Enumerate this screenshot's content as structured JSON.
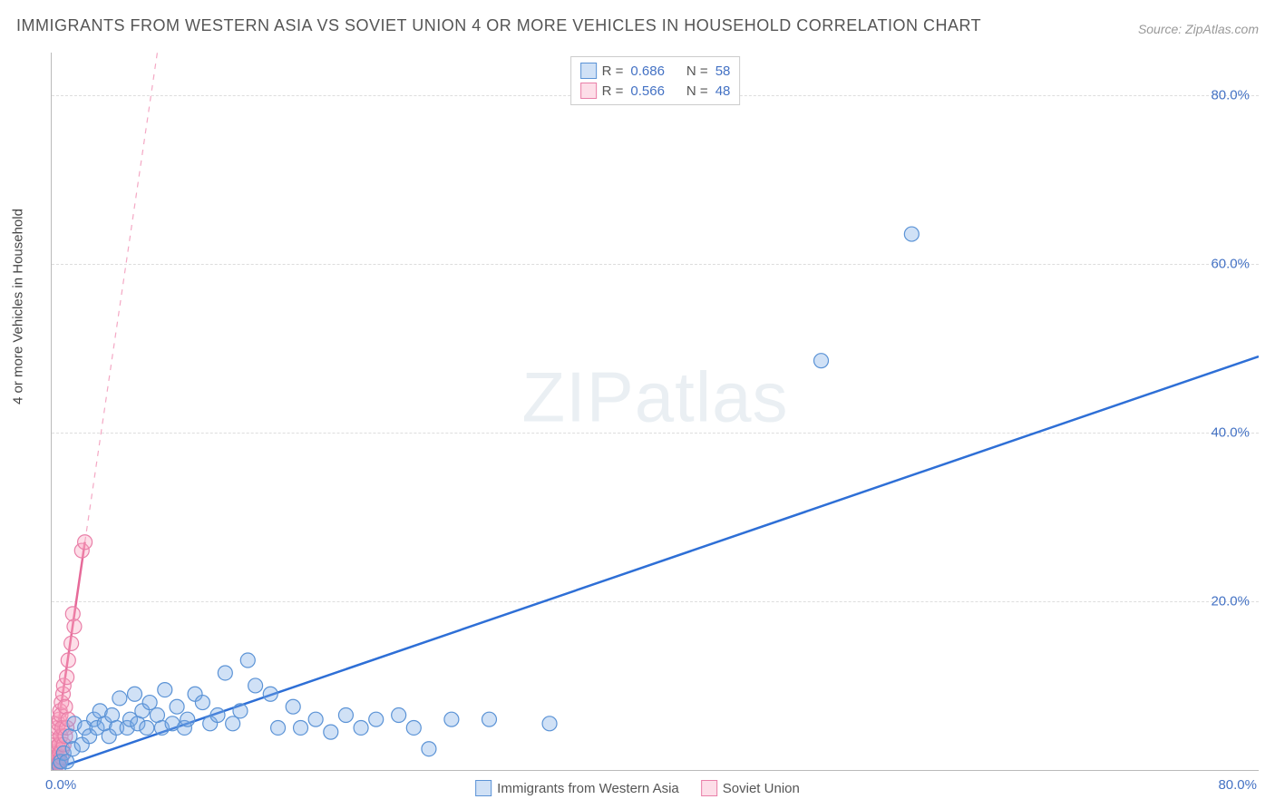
{
  "title": "IMMIGRANTS FROM WESTERN ASIA VS SOVIET UNION 4 OR MORE VEHICLES IN HOUSEHOLD CORRELATION CHART",
  "source": "Source: ZipAtlas.com",
  "watermark": "ZIPatlas",
  "y_axis_label": "4 or more Vehicles in Household",
  "axes": {
    "xmin": 0.0,
    "xmax": 80.0,
    "ymin": 0.0,
    "ymax": 85.0,
    "x_tick_labels": [
      "0.0%",
      "80.0%"
    ],
    "y_ticks": [
      20.0,
      40.0,
      60.0,
      80.0
    ],
    "y_tick_labels": [
      "20.0%",
      "40.0%",
      "60.0%",
      "80.0%"
    ],
    "grid_color": "#dddddd",
    "axis_color": "#bbbbbb"
  },
  "legend_top": {
    "series1": {
      "swatch_fill": "rgba(120,170,230,0.35)",
      "swatch_stroke": "#5b93d6",
      "r_label": "R =",
      "r": "0.686",
      "n_label": "N =",
      "n": "58"
    },
    "series2": {
      "swatch_fill": "rgba(250,160,190,0.35)",
      "swatch_stroke": "#e97fa8",
      "r_label": "R =",
      "r": "0.566",
      "n_label": "N =",
      "n": "48"
    }
  },
  "legend_bottom": {
    "series1": {
      "swatch_fill": "rgba(120,170,230,0.35)",
      "swatch_stroke": "#5b93d6",
      "label": "Immigrants from Western Asia"
    },
    "series2": {
      "swatch_fill": "rgba(250,160,190,0.35)",
      "swatch_stroke": "#e97fa8",
      "label": "Soviet Union"
    }
  },
  "chart": {
    "type": "scatter",
    "point_radius": 8,
    "background_color": "#ffffff",
    "series_blue": {
      "color": "#5b93d6",
      "fill": "rgba(120,170,230,0.35)",
      "trend": {
        "x1": 0.0,
        "y1": 0.0,
        "x2": 80.0,
        "y2": 49.0,
        "color": "#2e6fd6",
        "width": 2.5
      },
      "points": [
        [
          0.5,
          0.5
        ],
        [
          0.6,
          1.0
        ],
        [
          0.8,
          2.0
        ],
        [
          1.0,
          1.0
        ],
        [
          1.2,
          4.0
        ],
        [
          1.4,
          2.5
        ],
        [
          1.5,
          5.5
        ],
        [
          2.0,
          3.0
        ],
        [
          2.2,
          5.0
        ],
        [
          2.5,
          4.0
        ],
        [
          2.8,
          6.0
        ],
        [
          3.0,
          5.0
        ],
        [
          3.2,
          7.0
        ],
        [
          3.5,
          5.5
        ],
        [
          3.8,
          4.0
        ],
        [
          4.0,
          6.5
        ],
        [
          4.3,
          5.0
        ],
        [
          4.5,
          8.5
        ],
        [
          5.0,
          5.0
        ],
        [
          5.2,
          6.0
        ],
        [
          5.5,
          9.0
        ],
        [
          5.7,
          5.5
        ],
        [
          6.0,
          7.0
        ],
        [
          6.3,
          5.0
        ],
        [
          6.5,
          8.0
        ],
        [
          7.0,
          6.5
        ],
        [
          7.3,
          5.0
        ],
        [
          7.5,
          9.5
        ],
        [
          8.0,
          5.5
        ],
        [
          8.3,
          7.5
        ],
        [
          8.8,
          5.0
        ],
        [
          9.0,
          6.0
        ],
        [
          9.5,
          9.0
        ],
        [
          10.0,
          8.0
        ],
        [
          10.5,
          5.5
        ],
        [
          11.0,
          6.5
        ],
        [
          11.5,
          11.5
        ],
        [
          12.0,
          5.5
        ],
        [
          12.5,
          7.0
        ],
        [
          13.0,
          13.0
        ],
        [
          13.5,
          10.0
        ],
        [
          14.5,
          9.0
        ],
        [
          15.0,
          5.0
        ],
        [
          16.0,
          7.5
        ],
        [
          16.5,
          5.0
        ],
        [
          17.5,
          6.0
        ],
        [
          18.5,
          4.5
        ],
        [
          19.5,
          6.5
        ],
        [
          20.5,
          5.0
        ],
        [
          21.5,
          6.0
        ],
        [
          23.0,
          6.5
        ],
        [
          24.0,
          5.0
        ],
        [
          25.0,
          2.5
        ],
        [
          26.5,
          6.0
        ],
        [
          29.0,
          6.0
        ],
        [
          33.0,
          5.5
        ],
        [
          51.0,
          48.5
        ],
        [
          57.0,
          63.5
        ]
      ]
    },
    "series_pink": {
      "color": "#e97fa8",
      "fill": "rgba(250,160,190,0.35)",
      "trend_solid": {
        "x1": 0.0,
        "y1": 0.0,
        "x2": 2.2,
        "y2": 27.0,
        "color": "#e66a99",
        "width": 2.5
      },
      "trend_dash": {
        "x1": 2.2,
        "y1": 27.0,
        "x2": 7.0,
        "y2": 85.0,
        "color": "#f4a8c4",
        "width": 1.2
      },
      "points": [
        [
          0.0,
          0.2
        ],
        [
          0.05,
          0.5
        ],
        [
          0.05,
          1.0
        ],
        [
          0.1,
          0.5
        ],
        [
          0.1,
          1.5
        ],
        [
          0.1,
          2.0
        ],
        [
          0.15,
          0.8
        ],
        [
          0.15,
          2.5
        ],
        [
          0.2,
          1.0
        ],
        [
          0.2,
          1.8
        ],
        [
          0.2,
          3.0
        ],
        [
          0.25,
          1.5
        ],
        [
          0.25,
          2.2
        ],
        [
          0.3,
          4.5
        ],
        [
          0.3,
          0.5
        ],
        [
          0.3,
          2.0
        ],
        [
          0.35,
          1.0
        ],
        [
          0.35,
          3.5
        ],
        [
          0.4,
          5.0
        ],
        [
          0.4,
          1.5
        ],
        [
          0.4,
          2.8
        ],
        [
          0.45,
          5.5
        ],
        [
          0.45,
          0.8
        ],
        [
          0.5,
          6.0
        ],
        [
          0.5,
          3.0
        ],
        [
          0.5,
          1.0
        ],
        [
          0.55,
          7.0
        ],
        [
          0.55,
          2.0
        ],
        [
          0.6,
          6.5
        ],
        [
          0.6,
          4.0
        ],
        [
          0.65,
          8.0
        ],
        [
          0.65,
          1.5
        ],
        [
          0.7,
          5.0
        ],
        [
          0.7,
          2.5
        ],
        [
          0.75,
          9.0
        ],
        [
          0.8,
          3.0
        ],
        [
          0.8,
          10.0
        ],
        [
          0.9,
          4.0
        ],
        [
          0.9,
          7.5
        ],
        [
          1.0,
          11.0
        ],
        [
          1.0,
          5.0
        ],
        [
          1.1,
          13.0
        ],
        [
          1.1,
          6.0
        ],
        [
          1.3,
          15.0
        ],
        [
          1.4,
          18.5
        ],
        [
          1.5,
          17.0
        ],
        [
          2.0,
          26.0
        ],
        [
          2.2,
          27.0
        ]
      ]
    }
  }
}
